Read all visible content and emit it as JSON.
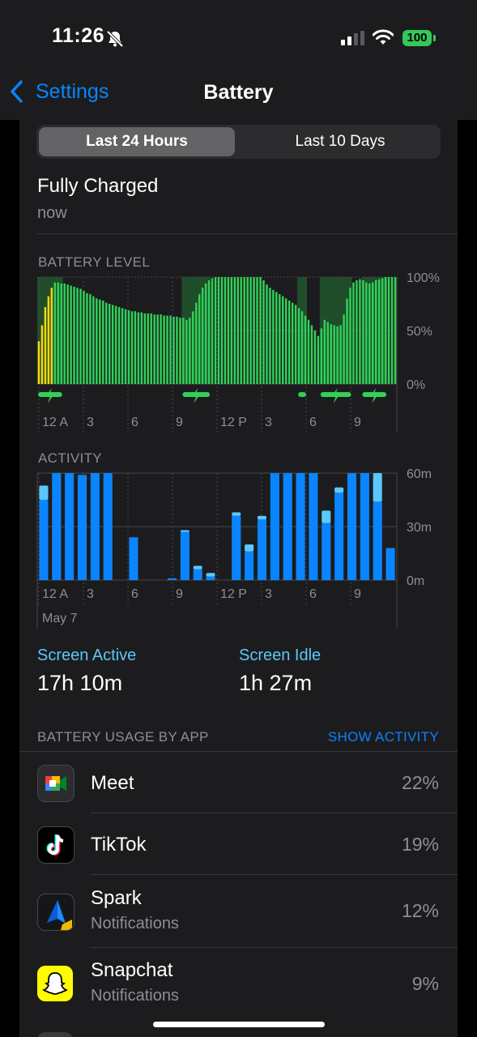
{
  "status": {
    "time": "11:26",
    "battery": "100"
  },
  "nav": {
    "back_label": "Settings",
    "title": "Battery"
  },
  "segment": {
    "options": [
      "Last 24 Hours",
      "Last 10 Days"
    ],
    "selected": 0
  },
  "charge": {
    "title": "Fully Charged",
    "subtitle": "now"
  },
  "battery_chart": {
    "title": "BATTERY LEVEL",
    "y_ticks": [
      "100%",
      "50%",
      "0%"
    ],
    "x_ticks": [
      "12 A",
      "3",
      "6",
      "9",
      "12 P",
      "3",
      "6",
      "9"
    ],
    "colors": {
      "normal": "#30d158",
      "low_power": "#ffd60a",
      "charging_bg": "#1f4d2a"
    }
  },
  "activity_chart": {
    "title": "ACTIVITY",
    "y_ticks": [
      "60m",
      "30m",
      "0m"
    ],
    "x_ticks": [
      "12 A",
      "3",
      "6",
      "9",
      "12 P",
      "3",
      "6",
      "9"
    ],
    "date_label": "May 7",
    "colors": {
      "active": "#0a84ff",
      "idle": "#5ac8fa"
    }
  },
  "chart_data": [
    {
      "type": "bar",
      "title": "BATTERY LEVEL",
      "ylabel": "",
      "ylim": [
        0,
        100
      ],
      "y_unit": "%",
      "x_ticks": [
        "12 A",
        "3",
        "6",
        "9",
        "12 P",
        "3",
        "6",
        "9"
      ],
      "values": [
        40,
        55,
        72,
        82,
        90,
        95,
        95,
        94,
        94,
        93,
        92,
        91,
        90,
        89,
        87,
        85,
        84,
        82,
        80,
        79,
        78,
        76,
        75,
        74,
        73,
        72,
        71,
        70,
        69,
        68,
        68,
        67,
        67,
        66,
        66,
        66,
        65,
        65,
        65,
        64,
        64,
        64,
        63,
        63,
        62,
        62,
        60,
        62,
        68,
        76,
        84,
        90,
        94,
        97,
        99,
        100,
        100,
        100,
        100,
        100,
        100,
        100,
        100,
        100,
        100,
        100,
        100,
        100,
        100,
        100,
        97,
        93,
        90,
        88,
        86,
        84,
        82,
        80,
        78,
        76,
        74,
        71,
        68,
        64,
        60,
        55,
        50,
        45,
        52,
        60,
        58,
        56,
        55,
        54,
        55,
        65,
        80,
        90,
        95,
        97,
        98,
        97,
        95,
        94,
        95,
        97,
        98,
        99,
        100,
        100,
        100,
        100
      ],
      "low_power_count": 5,
      "charging": [
        [
          0,
          7
        ],
        [
          45,
          53
        ],
        [
          81,
          83
        ],
        [
          88,
          97
        ],
        [
          101,
          108
        ]
      ]
    },
    {
      "type": "bar",
      "title": "ACTIVITY",
      "ylabel": "",
      "ylim": [
        0,
        60
      ],
      "y_unit": "m",
      "x_ticks": [
        "12 A",
        "3",
        "6",
        "9",
        "12 P",
        "3",
        "6",
        "9"
      ],
      "date_label": "May 7",
      "series": [
        {
          "name": "Screen Active",
          "values": [
            45,
            60,
            60,
            59,
            60,
            60,
            0,
            24,
            0,
            0,
            1,
            27,
            6,
            2,
            0,
            36,
            16,
            34,
            60,
            60,
            60,
            60,
            32,
            49,
            60,
            60,
            44,
            18
          ]
        },
        {
          "name": "Screen Idle",
          "values": [
            8,
            0,
            0,
            0,
            0,
            0,
            0,
            0,
            0,
            0,
            0,
            1,
            2,
            2,
            0,
            2,
            4,
            2,
            0,
            0,
            0,
            0,
            7,
            3,
            0,
            0,
            16,
            0
          ]
        }
      ]
    }
  ],
  "stats": {
    "active_label": "Screen Active",
    "active_value": "17h 10m",
    "idle_label": "Screen Idle",
    "idle_value": "1h 27m"
  },
  "usage": {
    "header": "BATTERY USAGE BY APP",
    "action": "SHOW ACTIVITY",
    "apps": [
      {
        "name": "Meet",
        "sub": "",
        "pct": "22%",
        "icon": "google-meet-icon"
      },
      {
        "name": "TikTok",
        "sub": "",
        "pct": "19%",
        "icon": "tiktok-icon"
      },
      {
        "name": "Spark",
        "sub": "Notifications",
        "pct": "12%",
        "icon": "spark-icon"
      },
      {
        "name": "Snapchat",
        "sub": "Notifications",
        "pct": "9%",
        "icon": "snapchat-icon"
      }
    ]
  }
}
